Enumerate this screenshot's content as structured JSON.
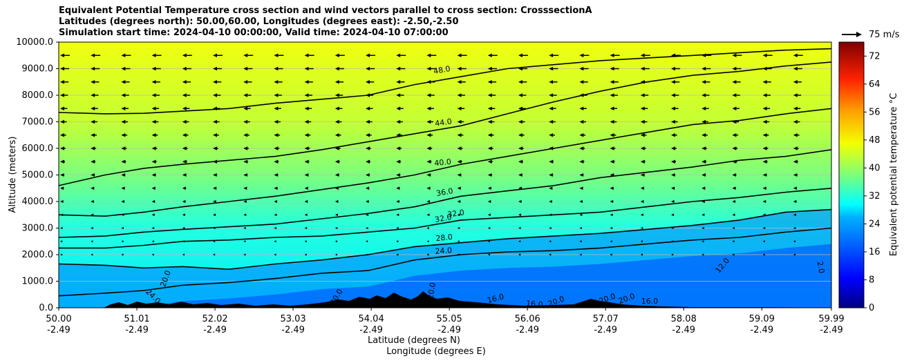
{
  "chart_data": {
    "type": "contourf",
    "title_lines": [
      "Equivalent Potential Temperature cross section and wind vectors parallel to cross section: CrosssectionA",
      "Latitudes (degrees north): 50.00,60.00, Longitudes (degrees east): -2.50,-2.50",
      "Simulation start time: 2024-04-10 00:00:00, Valid time: 2024-04-10 07:00:00"
    ],
    "ylabel": "Altitude (meters)",
    "xlabel": "Latitude (degrees N)",
    "xlabel2": "Longitude (degrees E)",
    "ylim": [
      0,
      10000
    ],
    "yticks": [
      "0.0",
      "1000.0",
      "2000.0",
      "3000.0",
      "4000.0",
      "5000.0",
      "6000.0",
      "7000.0",
      "8000.0",
      "9000.0",
      "10000.0"
    ],
    "xlim": [
      50.0,
      59.99
    ],
    "xticks_lat": [
      "50.00",
      "51.01",
      "52.02",
      "53.03",
      "54.04",
      "55.05",
      "56.06",
      "57.07",
      "58.08",
      "59.09",
      "59.99"
    ],
    "xticks_lon": [
      "-2.49",
      "-2.49",
      "-2.49",
      "-2.49",
      "-2.49",
      "-2.49",
      "-2.49",
      "-2.49",
      "-2.49",
      "-2.49",
      "-2.49"
    ],
    "colorbar": {
      "label": "Equivalent potential temperature °C",
      "range": [
        0,
        76
      ],
      "ticks": [
        "0",
        "8",
        "16",
        "24",
        "32",
        "40",
        "48",
        "56",
        "64",
        "72"
      ]
    },
    "quiver_key": "75 m/s",
    "contour_labels": [
      "48.0",
      "44.0",
      "40.0",
      "36.0",
      "32.0",
      "32.0",
      "28.0",
      "24.0",
      "20.0",
      "24.0",
      "20.0",
      "20.0",
      "16.0",
      "16.0",
      "20.0",
      "20.0",
      "20.0",
      "16.0",
      "12.0",
      "2.0"
    ],
    "contours": [
      {
        "level": 48,
        "x": [
          50.0,
          50.6,
          51.1,
          51.6,
          52.2,
          52.8,
          53.4,
          54.0,
          54.6,
          55.2,
          55.8,
          56.4,
          57.0,
          57.6,
          58.2,
          58.8,
          59.4,
          59.99
        ],
        "y": [
          7350,
          7300,
          7320,
          7400,
          7500,
          7700,
          7850,
          8000,
          8400,
          8700,
          9000,
          9150,
          9300,
          9400,
          9500,
          9600,
          9700,
          9750
        ]
      },
      {
        "level": 44,
        "x": [
          50.0,
          50.6,
          51.1,
          51.6,
          52.2,
          52.8,
          53.4,
          54.0,
          54.6,
          55.2,
          55.8,
          56.4,
          57.0,
          57.6,
          58.2,
          58.8,
          59.4,
          59.99
        ],
        "y": [
          4600,
          5000,
          5250,
          5400,
          5550,
          5700,
          5950,
          6250,
          6550,
          6850,
          7300,
          7750,
          8150,
          8500,
          8750,
          8900,
          9100,
          9250
        ]
      },
      {
        "level": 40,
        "x": [
          50.0,
          50.6,
          51.1,
          51.6,
          52.2,
          52.8,
          53.4,
          54.0,
          54.6,
          55.2,
          55.8,
          56.4,
          57.0,
          57.6,
          58.2,
          58.8,
          59.4,
          59.99
        ],
        "y": [
          3500,
          3450,
          3600,
          3800,
          4000,
          4200,
          4450,
          4700,
          5000,
          5400,
          5700,
          6000,
          6300,
          6600,
          6900,
          7050,
          7300,
          7500
        ]
      },
      {
        "level": 36,
        "x": [
          50.0,
          50.6,
          51.1,
          51.6,
          52.2,
          52.8,
          53.4,
          54.0,
          54.6,
          55.2,
          55.8,
          56.4,
          57.0,
          57.6,
          58.2,
          58.8,
          59.4,
          59.99
        ],
        "y": [
          2650,
          2700,
          2850,
          2950,
          3050,
          3150,
          3350,
          3550,
          3800,
          4200,
          4400,
          4600,
          4900,
          5100,
          5300,
          5550,
          5700,
          5950
        ]
      },
      {
        "level": 32,
        "x": [
          50.0,
          50.6,
          51.1,
          51.6,
          52.2,
          52.8,
          53.4,
          54.0,
          54.6,
          55.2,
          55.8,
          56.4,
          57.0,
          57.6,
          58.2,
          58.8,
          59.4,
          59.99
        ],
        "y": [
          2250,
          2250,
          2350,
          2500,
          2550,
          2650,
          2700,
          2850,
          3000,
          3300,
          3400,
          3500,
          3600,
          3800,
          4000,
          4150,
          4350,
          4500
        ]
      },
      {
        "level": 28,
        "x": [
          50.0,
          50.6,
          51.1,
          51.6,
          52.2,
          52.8,
          53.4,
          54.0,
          54.6,
          55.2,
          55.8,
          56.4,
          57.0,
          57.6,
          58.2,
          58.8,
          59.4,
          59.99
        ],
        "y": [
          1650,
          1600,
          1500,
          1550,
          1450,
          1650,
          1800,
          2000,
          2300,
          2450,
          2600,
          2700,
          2800,
          2950,
          3100,
          3300,
          3600,
          3700
        ]
      },
      {
        "level": 24,
        "x": [
          50.0,
          50.6,
          51.1,
          51.6,
          52.2,
          52.8,
          53.4,
          54.0,
          54.6,
          55.2,
          55.8,
          56.4,
          57.0,
          57.6,
          58.2,
          58.8,
          59.4,
          59.99
        ],
        "y": [
          450,
          550,
          650,
          850,
          950,
          1100,
          1300,
          1400,
          1800,
          2000,
          2100,
          2150,
          2250,
          2400,
          2550,
          2650,
          2850,
          3000
        ]
      }
    ]
  }
}
